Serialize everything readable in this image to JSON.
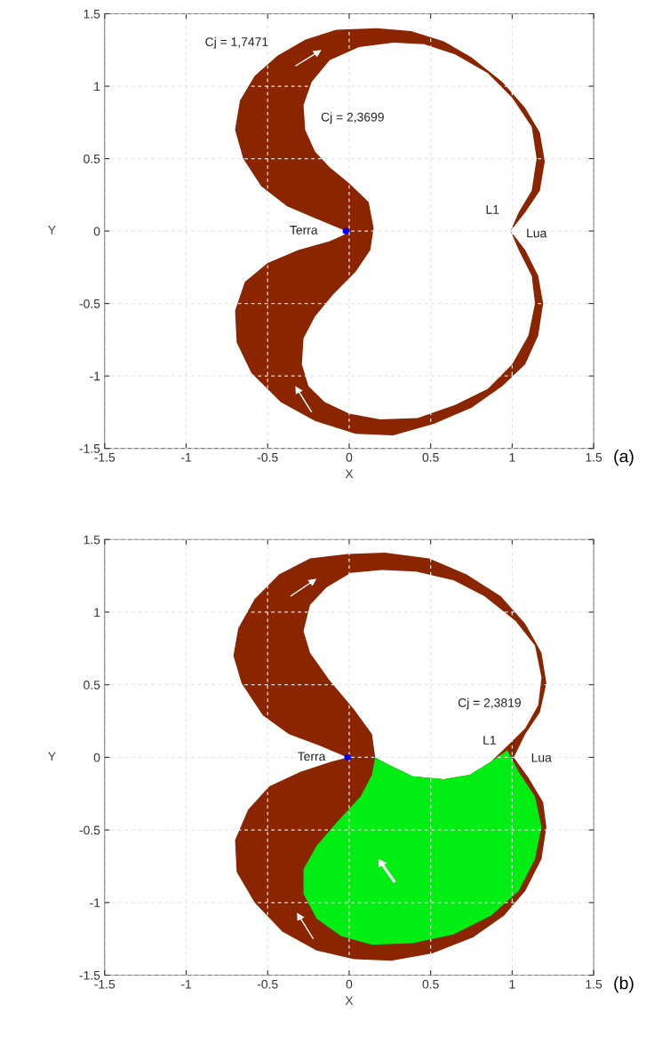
{
  "chart_data": [
    {
      "type": "area",
      "xlabel": "X",
      "ylabel": "Y",
      "xlim": [
        -1.5,
        1.5
      ],
      "ylim": [
        -1.5,
        1.5
      ],
      "xticks": [
        -1.5,
        -1,
        -0.5,
        0,
        0.5,
        1,
        1.5
      ],
      "yticks": [
        -1.5,
        -1,
        -0.5,
        0,
        0.5,
        1,
        1.5
      ],
      "grid": true,
      "series": [
        {
          "type": "area",
          "color": "#8b2500",
          "x": [
            -0.02,
            -0.21,
            -0.38,
            -0.54,
            -0.65,
            -0.7,
            -0.67,
            -0.58,
            -0.44,
            -0.27,
            -0.08,
            0.17,
            0.38,
            0.58,
            0.75,
            0.94,
            1.08,
            1.17,
            1.2,
            1.17,
            1.08,
            0.99,
            1.08,
            1.16,
            1.19,
            1.16,
            1.08,
            0.94,
            0.75,
            0.52,
            0.27,
            0.04,
            -0.21,
            -0.42,
            -0.6,
            -0.69,
            -0.7,
            -0.64,
            -0.5,
            -0.31,
            -0.12,
            -0.02
          ],
          "values": [
            0,
            0.09,
            0.17,
            0.31,
            0.5,
            0.7,
            0.9,
            1.07,
            1.21,
            1.32,
            1.39,
            1.4,
            1.38,
            1.31,
            1.2,
            1.03,
            0.85,
            0.68,
            0.48,
            0.28,
            0.13,
            0,
            -0.13,
            -0.31,
            -0.5,
            -0.72,
            -0.92,
            -1.07,
            -1.22,
            -1.33,
            -1.41,
            -1.4,
            -1.31,
            -1.18,
            -0.98,
            -0.77,
            -0.55,
            -0.35,
            -0.22,
            -0.13,
            -0.07,
            -0.02
          ]
        },
        {
          "type": "area",
          "color": "#ffffff",
          "x": [
            0.15,
            0.12,
            0.0,
            -0.12,
            -0.21,
            -0.27,
            -0.28,
            -0.23,
            -0.12,
            0.06,
            0.27,
            0.46,
            0.65,
            0.85,
            1.0,
            1.12,
            1.15,
            1.12,
            1.04,
            0.99,
            1.04,
            1.12,
            1.14,
            1.1,
            1.0,
            0.85,
            0.65,
            0.42,
            0.19,
            0.0,
            -0.15,
            -0.25,
            -0.29,
            -0.28,
            -0.21,
            -0.1,
            0.04,
            0.13
          ],
          "values": [
            0.02,
            0.2,
            0.33,
            0.44,
            0.55,
            0.7,
            0.87,
            1.03,
            1.18,
            1.27,
            1.3,
            1.29,
            1.22,
            1.09,
            0.92,
            0.72,
            0.5,
            0.28,
            0.13,
            0,
            -0.13,
            -0.31,
            -0.5,
            -0.72,
            -0.92,
            -1.09,
            -1.2,
            -1.29,
            -1.3,
            -1.26,
            -1.18,
            -1.07,
            -0.92,
            -0.74,
            -0.59,
            -0.44,
            -0.28,
            -0.13
          ]
        },
        {
          "type": "scatter",
          "color": "#0000ff",
          "x": [
            -0.02
          ],
          "values": [
            0
          ]
        }
      ],
      "annotations": [
        "Cj = 1,7471",
        "Cj = 2,3699",
        "Terra",
        "L1",
        "Lua",
        "(a)"
      ]
    },
    {
      "type": "area",
      "xlabel": "X",
      "ylabel": "Y",
      "xlim": [
        -1.5,
        1.5
      ],
      "ylim": [
        -1.5,
        1.5
      ],
      "xticks": [
        -1.5,
        -1,
        -0.5,
        0,
        0.5,
        1,
        1.5
      ],
      "yticks": [
        -1.5,
        -1,
        -0.5,
        0,
        0.5,
        1,
        1.5
      ],
      "grid": true,
      "series": [
        {
          "type": "area",
          "color": "#8b2500",
          "x": [
            -0.01,
            -0.18,
            -0.37,
            -0.53,
            -0.66,
            -0.71,
            -0.68,
            -0.58,
            -0.43,
            -0.24,
            -0.01,
            0.22,
            0.49,
            0.72,
            0.93,
            1.08,
            1.18,
            1.21,
            1.17,
            1.08,
            1.01,
            1.1,
            1.19,
            1.21,
            1.18,
            1.08,
            0.95,
            0.76,
            0.51,
            0.26,
            0.03,
            -0.2,
            -0.41,
            -0.58,
            -0.69,
            -0.7,
            -0.62,
            -0.49,
            -0.3,
            -0.11
          ],
          "values": [
            0,
            0.08,
            0.16,
            0.29,
            0.51,
            0.7,
            0.89,
            1.09,
            1.26,
            1.37,
            1.4,
            1.41,
            1.37,
            1.26,
            1.11,
            0.92,
            0.72,
            0.51,
            0.31,
            0.16,
            0,
            -0.14,
            -0.31,
            -0.48,
            -0.7,
            -0.92,
            -1.09,
            -1.24,
            -1.35,
            -1.4,
            -1.39,
            -1.33,
            -1.2,
            -1.0,
            -0.79,
            -0.57,
            -0.36,
            -0.2,
            -0.1,
            -0.03
          ]
        },
        {
          "type": "area",
          "color": "#ffffff",
          "x": [
            0.16,
            0.14,
            0.03,
            -0.12,
            -0.24,
            -0.28,
            -0.24,
            -0.14,
            0.01,
            0.2,
            0.41,
            0.64,
            0.83,
            1.02,
            1.14,
            1.18,
            1.16,
            1.08,
            0.99,
            0.87,
            0.74,
            0.58,
            0.39,
            0.24
          ],
          "values": [
            0,
            0.16,
            0.33,
            0.53,
            0.72,
            0.87,
            1.05,
            1.17,
            1.27,
            1.29,
            1.28,
            1.22,
            1.11,
            0.94,
            0.77,
            0.55,
            0.36,
            0.2,
            0.1,
            -0.03,
            -0.12,
            -0.15,
            -0.13,
            -0.05
          ]
        },
        {
          "type": "area",
          "color": "#00ee11",
          "x": [
            0.16,
            0.24,
            0.39,
            0.58,
            0.74,
            0.87,
            0.97,
            1.04,
            1.14,
            1.18,
            1.14,
            1.04,
            0.87,
            0.64,
            0.39,
            0.14,
            -0.05,
            -0.2,
            -0.28,
            -0.28,
            -0.2,
            -0.07,
            0.07,
            0.14
          ],
          "values": [
            0,
            -0.05,
            -0.13,
            -0.15,
            -0.12,
            -0.03,
            0.05,
            -0.1,
            -0.27,
            -0.48,
            -0.7,
            -0.92,
            -1.09,
            -1.22,
            -1.28,
            -1.29,
            -1.23,
            -1.11,
            -0.94,
            -0.77,
            -0.61,
            -0.44,
            -0.27,
            -0.12
          ]
        },
        {
          "type": "scatter",
          "color": "#0000ff",
          "x": [
            -0.01
          ],
          "values": [
            0
          ]
        }
      ],
      "annotations": [
        "Cj = 2,3819",
        "Terra",
        "L1",
        "Lua",
        "(b)"
      ]
    }
  ]
}
